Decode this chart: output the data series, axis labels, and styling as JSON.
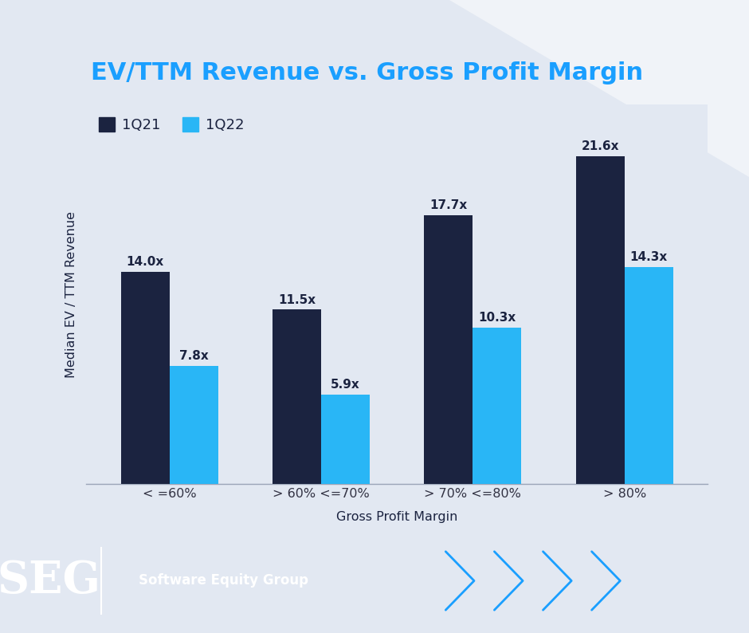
{
  "title": "EV/TTM Revenue vs. Gross Profit Margin",
  "categories": [
    "< =60%",
    "> 60% <=70%",
    "> 70% <=80%",
    "> 80%"
  ],
  "series_1Q21": [
    14.0,
    11.5,
    17.7,
    21.6
  ],
  "series_1Q22": [
    7.8,
    5.9,
    10.3,
    14.3
  ],
  "labels_1Q21": [
    "14.0x",
    "11.5x",
    "17.7x",
    "21.6x"
  ],
  "labels_1Q22": [
    "7.8x",
    "5.9x",
    "10.3x",
    "14.3x"
  ],
  "color_1Q21": "#1b2340",
  "color_1Q22": "#29b6f6",
  "xlabel": "Gross Profit Margin",
  "ylabel": "Median EV / TTM Revenue",
  "legend_1Q21": "1Q21",
  "legend_1Q22": "1Q22",
  "bg_color": "#e2e8f2",
  "footer_bg": "#0e1a33",
  "title_color": "#1a9fff",
  "label_color": "#1b2340",
  "axis_label_color": "#1b2340",
  "tick_color": "#333344",
  "bar_width": 0.32,
  "ylim": [
    0,
    25
  ],
  "seg_text": "SEG",
  "seg_subtitle": "Software Equity Group",
  "chevron_color": "#1a9fff",
  "corner_color": "#d0d8e8",
  "white": "#ffffff"
}
